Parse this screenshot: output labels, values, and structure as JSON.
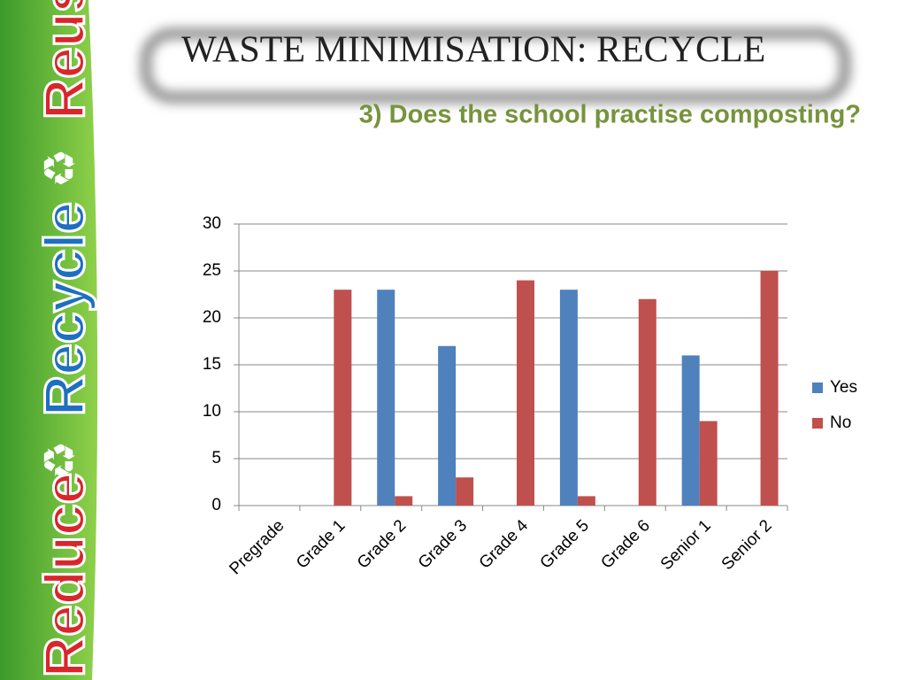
{
  "side_banner": [
    "Reduce",
    "Recycle",
    "Reuse"
  ],
  "chart_data": {
    "type": "bar",
    "title": "WASTE MINIMISATION: RECYCLE",
    "subtitle": "3) Does the school practise composting?",
    "categories": [
      "Pregrade",
      "Grade 1",
      "Grade 2",
      "Grade 3",
      "Grade 4",
      "Grade 5",
      "Grade 6",
      "Senior 1",
      "Senior 2"
    ],
    "series": [
      {
        "name": "Yes",
        "color": "#4f81bd",
        "values": [
          0,
          0,
          23,
          17,
          0,
          23,
          0,
          16,
          0
        ]
      },
      {
        "name": "No",
        "color": "#c0504d",
        "values": [
          0,
          23,
          1,
          3,
          24,
          1,
          22,
          9,
          25
        ]
      }
    ],
    "ylim": [
      0,
      30
    ],
    "yticks": [
      0,
      5,
      10,
      15,
      20,
      25,
      30
    ],
    "grid": true,
    "legend": "right"
  }
}
